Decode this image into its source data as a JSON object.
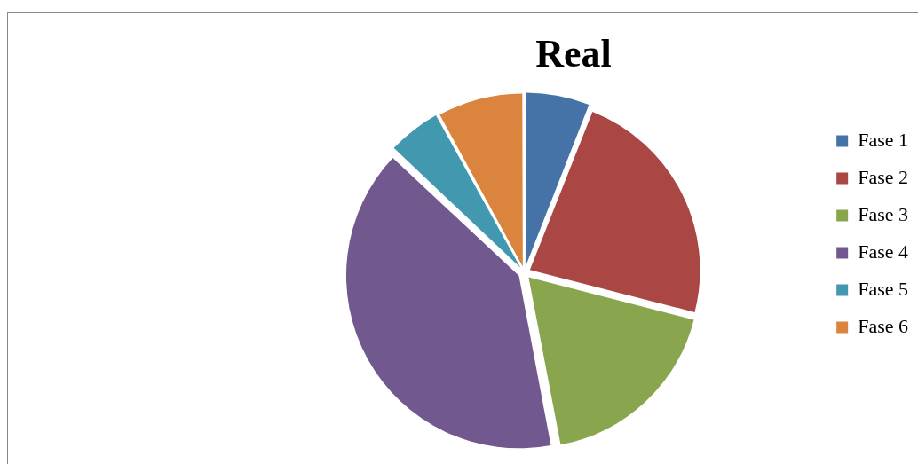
{
  "chart_data": {
    "type": "pie",
    "title": "Real",
    "categories": [
      "Fase 1",
      "Fase 2",
      "Fase 3",
      "Fase 4",
      "Fase 5",
      "Fase 6"
    ],
    "values": [
      6,
      23,
      18,
      40,
      5,
      8
    ],
    "colors": [
      "#4572a7",
      "#aa4643",
      "#89a54e",
      "#71588f",
      "#4198af",
      "#db843d"
    ],
    "legend": "right"
  }
}
